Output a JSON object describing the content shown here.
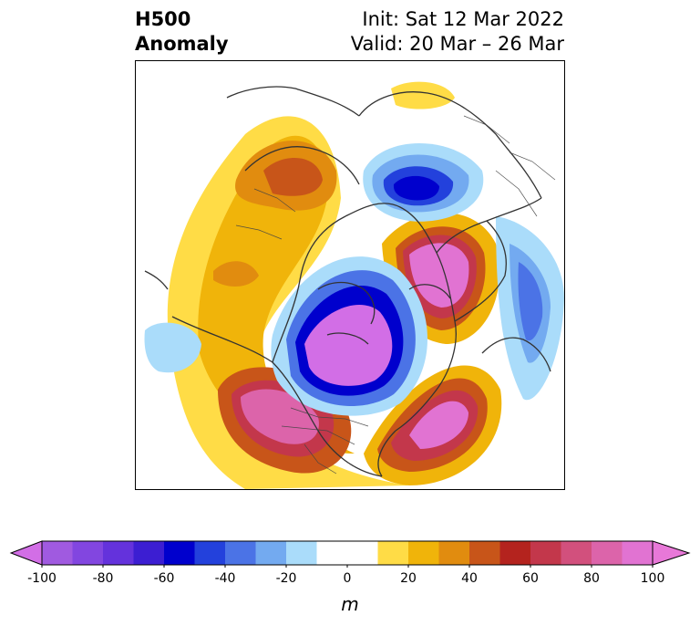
{
  "title": {
    "left_line1": "H500",
    "left_line2": "Anomaly",
    "right_line1": "Init: Sat 12 Mar 2022",
    "right_line2": "Valid: 20 Mar – 26 Mar"
  },
  "colorbar": {
    "unit": "m",
    "ticks": [
      "-100",
      "-80",
      "-60",
      "-40",
      "-20",
      "0",
      "20",
      "40",
      "60",
      "80",
      "100"
    ],
    "low_extend_color": "#d26ee6",
    "high_extend_color": "#e878d8",
    "bins": [
      {
        "from": -100,
        "to": -90,
        "color": "#a05ae0"
      },
      {
        "from": -90,
        "to": -80,
        "color": "#8246e0"
      },
      {
        "from": -80,
        "to": -70,
        "color": "#6432dc"
      },
      {
        "from": -70,
        "to": -60,
        "color": "#3c1ed2"
      },
      {
        "from": -60,
        "to": -50,
        "color": "#0000cd"
      },
      {
        "from": -50,
        "to": -40,
        "color": "#2341dc"
      },
      {
        "from": -40,
        "to": -30,
        "color": "#4b73e6"
      },
      {
        "from": -30,
        "to": -20,
        "color": "#73aaf0"
      },
      {
        "from": -20,
        "to": -10,
        "color": "#aadcfa"
      },
      {
        "from": -10,
        "to": 10,
        "color": "#ffffff"
      },
      {
        "from": 10,
        "to": 20,
        "color": "#ffdc46"
      },
      {
        "from": 20,
        "to": 30,
        "color": "#f0b40a"
      },
      {
        "from": 30,
        "to": 40,
        "color": "#e18c0f"
      },
      {
        "from": 40,
        "to": 50,
        "color": "#c85519"
      },
      {
        "from": 50,
        "to": 60,
        "color": "#b4231e"
      },
      {
        "from": 60,
        "to": 70,
        "color": "#c3374b"
      },
      {
        "from": 70,
        "to": 80,
        "color": "#d2507d"
      },
      {
        "from": 80,
        "to": 90,
        "color": "#dc64aa"
      },
      {
        "from": 90,
        "to": 100,
        "color": "#e173d2"
      }
    ]
  }
}
